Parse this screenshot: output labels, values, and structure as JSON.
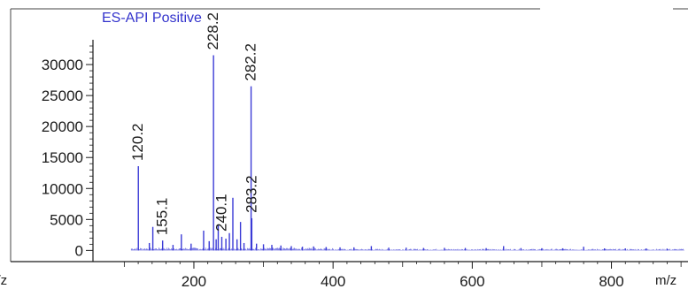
{
  "chart_data": {
    "type": "bar",
    "title": "ES-API Positive",
    "xlabel": "m/z",
    "ylabel": "",
    "xlim": [
      55,
      910
    ],
    "ylim": [
      -1800,
      34000
    ],
    "x_ticks": [
      200,
      400,
      600,
      800
    ],
    "y_ticks": [
      0,
      5000,
      10000,
      15000,
      20000,
      25000,
      30000
    ],
    "grid": false,
    "series": [
      {
        "values": [
          {
            "x": 120.2,
            "y": 13600,
            "label": "120.2"
          },
          {
            "x": 136.0,
            "y": 1200
          },
          {
            "x": 141.0,
            "y": 3800
          },
          {
            "x": 155.1,
            "y": 1600,
            "label": "155.1"
          },
          {
            "x": 170.0,
            "y": 900
          },
          {
            "x": 182.0,
            "y": 2600
          },
          {
            "x": 196.0,
            "y": 1100
          },
          {
            "x": 214.0,
            "y": 3200
          },
          {
            "x": 222.0,
            "y": 1500
          },
          {
            "x": 228.2,
            "y": 31500,
            "label": "228.2"
          },
          {
            "x": 232.0,
            "y": 1800
          },
          {
            "x": 235.0,
            "y": 4200
          },
          {
            "x": 240.1,
            "y": 2200,
            "label": "240.1"
          },
          {
            "x": 246.0,
            "y": 1900
          },
          {
            "x": 251.0,
            "y": 2800
          },
          {
            "x": 256.0,
            "y": 8500
          },
          {
            "x": 262.0,
            "y": 1800
          },
          {
            "x": 267.0,
            "y": 4600
          },
          {
            "x": 272.0,
            "y": 1200
          },
          {
            "x": 282.2,
            "y": 26500,
            "label": "282.2"
          },
          {
            "x": 283.2,
            "y": 5200,
            "label": "283.2"
          },
          {
            "x": 290.0,
            "y": 1100
          },
          {
            "x": 300.0,
            "y": 1000
          },
          {
            "x": 312.0,
            "y": 900
          },
          {
            "x": 325.0,
            "y": 800
          },
          {
            "x": 340.0,
            "y": 700
          },
          {
            "x": 356.0,
            "y": 600
          },
          {
            "x": 372.0,
            "y": 650
          },
          {
            "x": 390.0,
            "y": 550
          },
          {
            "x": 410.0,
            "y": 500
          },
          {
            "x": 430.0,
            "y": 500
          },
          {
            "x": 455.0,
            "y": 700
          },
          {
            "x": 480.0,
            "y": 450
          },
          {
            "x": 505.0,
            "y": 450
          },
          {
            "x": 530.0,
            "y": 400
          },
          {
            "x": 560.0,
            "y": 420
          },
          {
            "x": 590.0,
            "y": 400
          },
          {
            "x": 620.0,
            "y": 380
          },
          {
            "x": 645.0,
            "y": 700
          },
          {
            "x": 670.0,
            "y": 380
          },
          {
            "x": 700.0,
            "y": 360
          },
          {
            "x": 730.0,
            "y": 350
          },
          {
            "x": 760.0,
            "y": 600
          },
          {
            "x": 790.0,
            "y": 340
          },
          {
            "x": 820.0,
            "y": 330
          },
          {
            "x": 850.0,
            "y": 320
          },
          {
            "x": 880.0,
            "y": 300
          }
        ]
      }
    ],
    "color": "#3b3bd6"
  },
  "colors": {
    "series": "#3b3bd6",
    "title": "#3333cc",
    "axis": "#1a1a1a"
  }
}
